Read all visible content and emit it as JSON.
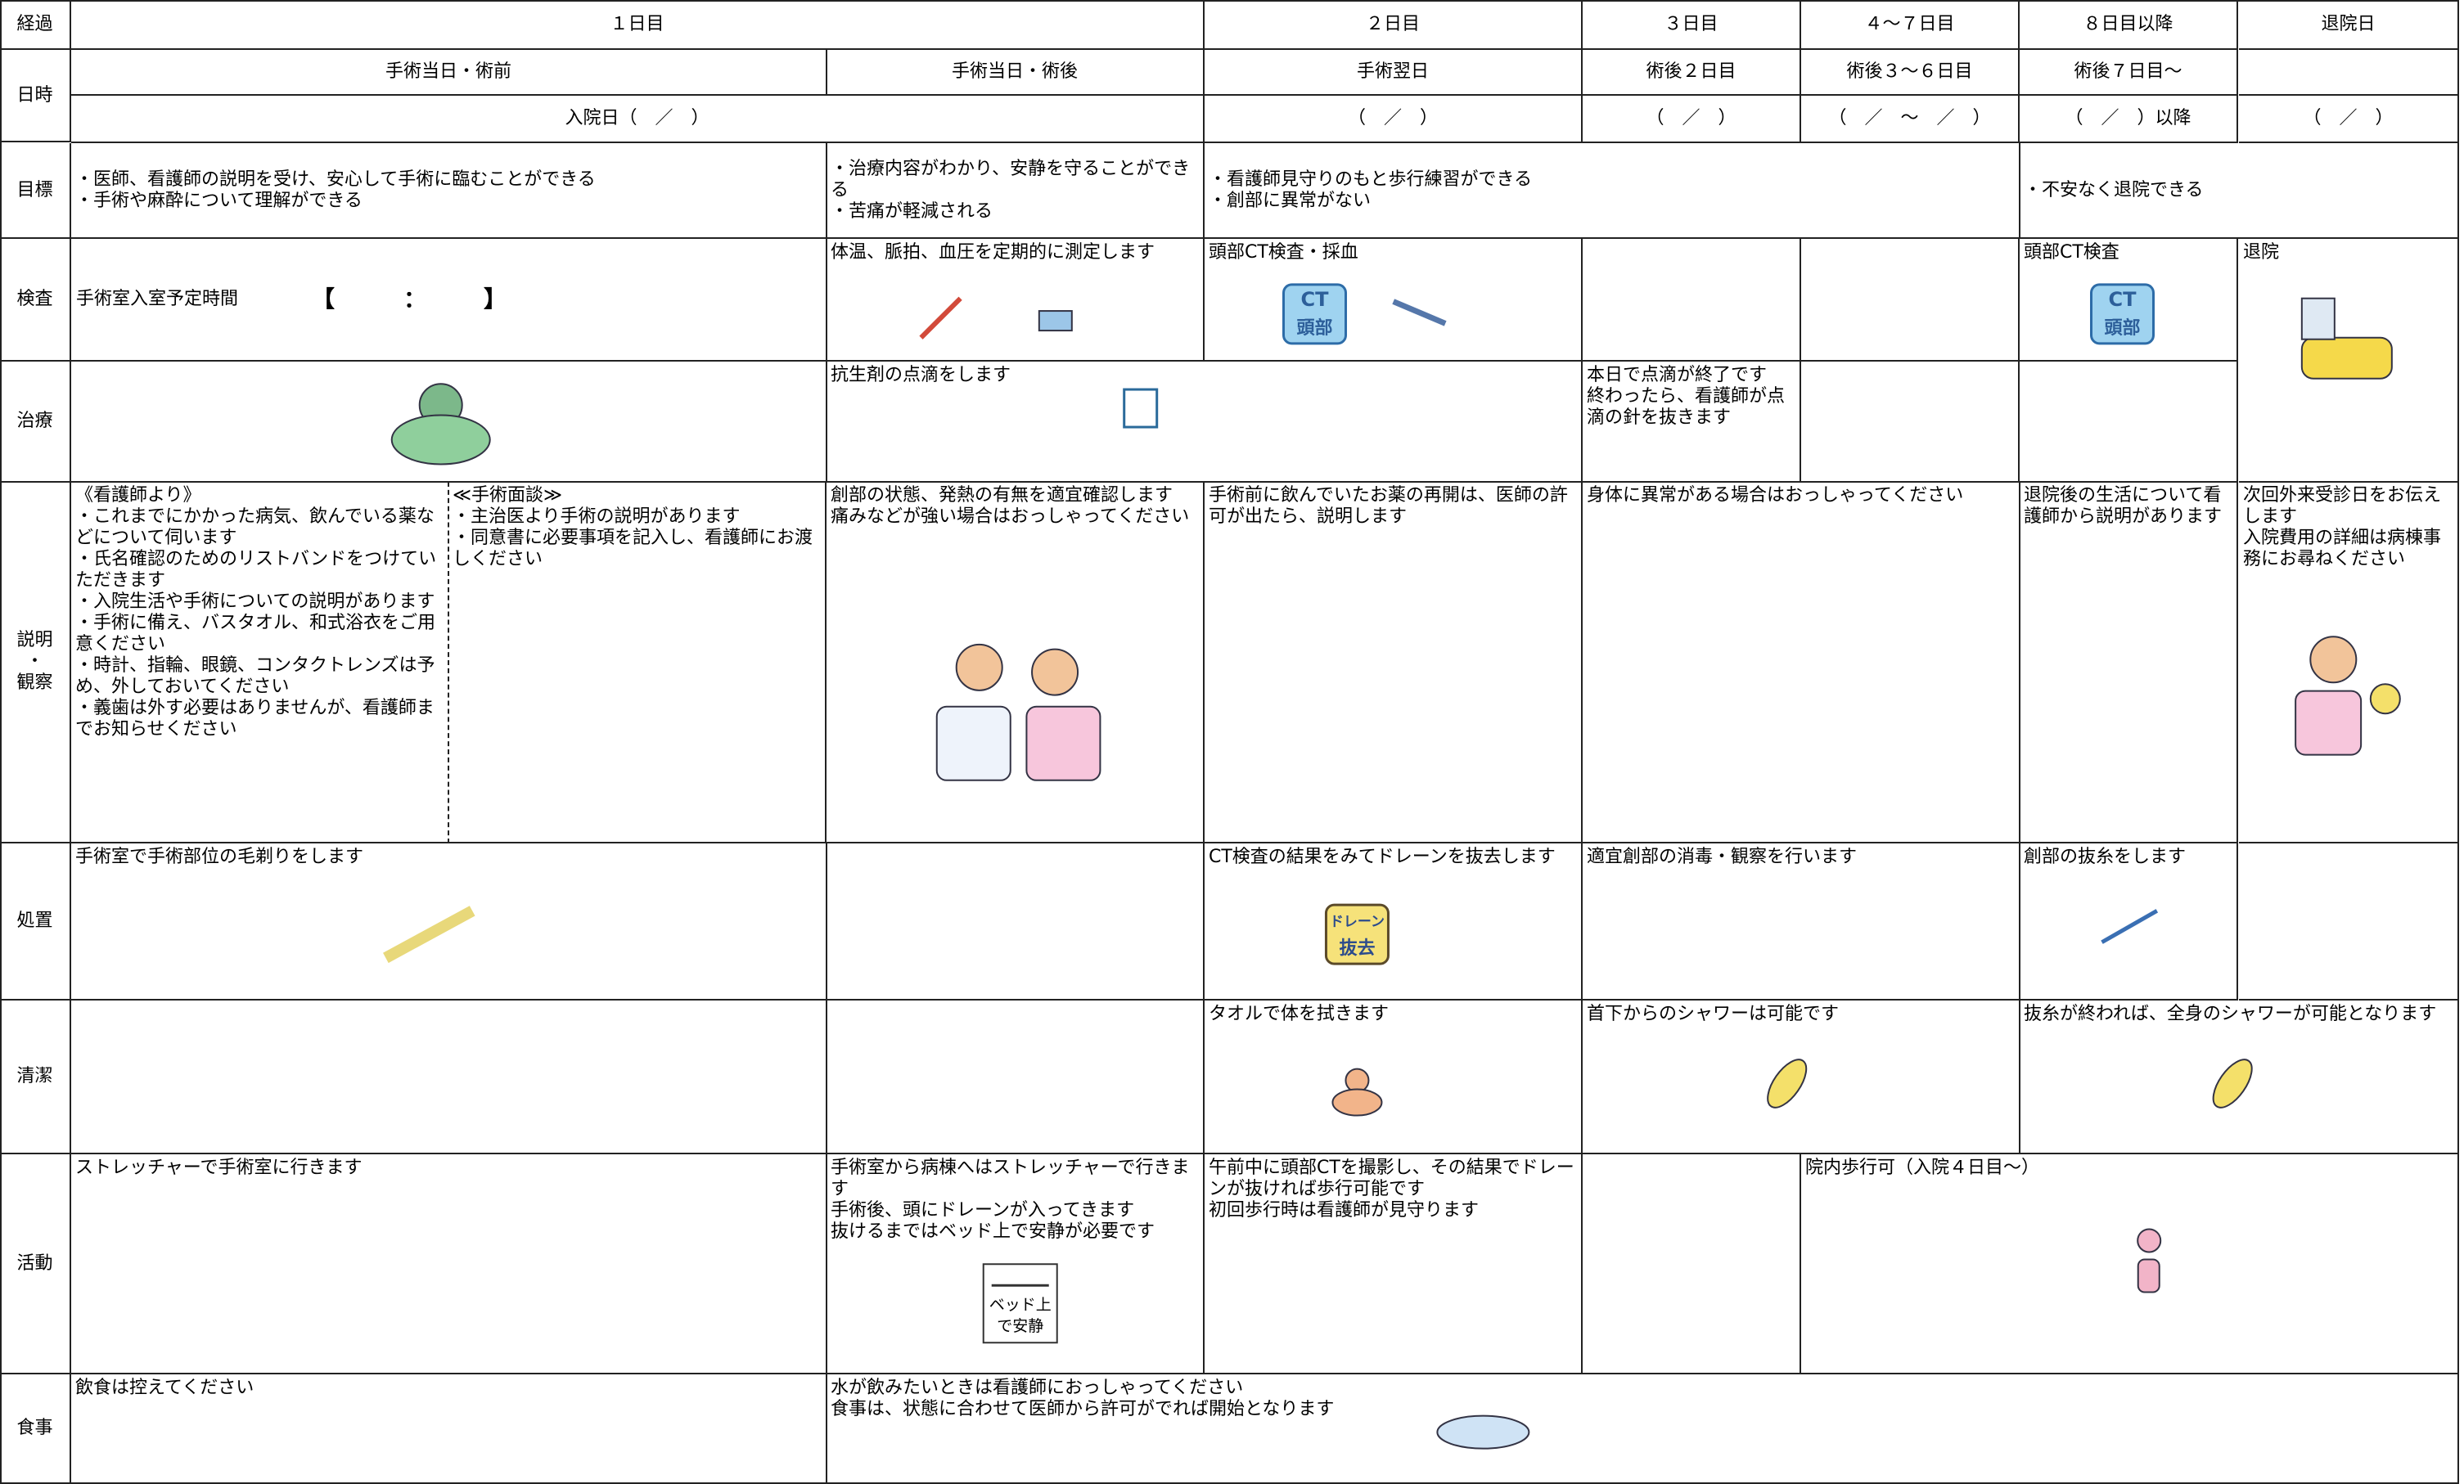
{
  "cells": [
    {
      "lines": [
        "経過"
      ]
    },
    {
      "lines": [
        "１日目"
      ]
    },
    {
      "lines": [
        "２日目"
      ]
    },
    {
      "lines": [
        "３日目"
      ]
    },
    {
      "lines": [
        "４～７日目"
      ]
    },
    {
      "lines": [
        "８日目以降"
      ]
    },
    {
      "lines": [
        "退院日"
      ]
    },
    {
      "lines": [
        "日時"
      ]
    },
    {
      "lines": [
        "手術当日・術前"
      ]
    },
    {
      "lines": [
        "手術当日・術後"
      ]
    },
    {
      "lines": [
        "手術翌日"
      ]
    },
    {
      "lines": [
        "術後２日目"
      ]
    },
    {
      "lines": [
        "術後３～６日目"
      ]
    },
    {
      "lines": [
        "術後７日目～"
      ]
    },
    {
      "lines": [
        "入院日（　／　）"
      ]
    },
    {
      "lines": [
        "（　／　）"
      ]
    },
    {
      "lines": [
        "（　／　）"
      ]
    },
    {
      "lines": [
        "（　／　～　／　）"
      ]
    },
    {
      "lines": [
        "（　／　）以降"
      ]
    },
    {
      "lines": [
        "（　／　）"
      ]
    },
    {
      "lines": [
        "目標"
      ]
    },
    {
      "lines": [
        "・医師、看護師の説明を受け、安心して手術に臨むことができる",
        "・手術や麻酔について理解ができる"
      ]
    },
    {
      "lines": [
        "・治療内容がわかり、安静を守ることができる",
        "・苦痛が軽減される"
      ]
    },
    {
      "lines": [
        "・看護師見守りのもと歩行練習ができる",
        "・創部に異常がない"
      ]
    },
    {
      "lines": [
        "・不安なく退院できる"
      ]
    },
    {
      "lines": [
        "検査"
      ]
    },
    {
      "lines": [
        "手術室入室予定時間",
        "【　　　：　　　】"
      ]
    },
    {
      "lines": [
        "体温、脈拍、血圧を定期的に測定します"
      ]
    },
    {
      "lines": [
        "頭部CT検査・採血"
      ]
    },
    {
      "lines": [
        "頭部CT検査"
      ]
    },
    {
      "lines": [
        "退院"
      ]
    },
    {
      "lines": [
        "治療"
      ]
    },
    {
      "lines": [
        "抗生剤の点滴をします"
      ]
    },
    {
      "lines": [
        "本日で点滴が終了です",
        "終わったら、看護師が点滴の針を抜きます"
      ]
    },
    {
      "lines": [
        "説明",
        "・",
        "観察"
      ]
    },
    {
      "lines": [
        "《看護師より》",
        "・これまでにかかった病気、飲んでいる薬などについて伺います",
        "・氏名確認のためのリストバンドをつけていただきます",
        "・入院生活や手術についての説明があります",
        "・手術に備え、バスタオル、和式浴衣をご用意ください",
        "・時計、指輪、眼鏡、コンタクトレンズは予め、外しておいてください",
        "・義歯は外す必要はありませんが、看護師までお知らせください"
      ]
    },
    {
      "lines": [
        "≪手術面談≫",
        "・主治医より手術の説明があります",
        "・同意書に必要事項を記入し、看護師にお渡しください"
      ]
    },
    {
      "lines": [
        "創部の状態、発熱の有無を適宜確認します",
        "痛みなどが強い場合はおっしゃってください"
      ]
    },
    {
      "lines": [
        "手術前に飲んでいたお薬の再開は、医師の許可が出たら、説明します"
      ]
    },
    {
      "lines": [
        "身体に異常がある場合はおっしゃってください"
      ]
    },
    {
      "lines": [
        "退院後の生活について看護師から説明があります"
      ]
    },
    {
      "lines": [
        "次回外来受診日をお伝えします",
        "入院費用の詳細は病棟事務にお尋ねください"
      ]
    },
    {
      "lines": [
        "処置"
      ]
    },
    {
      "lines": [
        "手術室で手術部位の毛剃りをします"
      ]
    },
    {
      "lines": [
        "CT検査の結果をみてドレーンを抜去します"
      ]
    },
    {
      "lines": [
        "適宜創部の消毒・観察を行います"
      ]
    },
    {
      "lines": [
        "創部の抜糸をします"
      ]
    },
    {
      "lines": [
        "清潔"
      ]
    },
    {
      "lines": [
        "タオルで体を拭きます"
      ]
    },
    {
      "lines": [
        "首下からのシャワーは可能です"
      ]
    },
    {
      "lines": [
        "抜糸が終われば、全身のシャワーが可能となります"
      ]
    },
    {
      "lines": [
        "活動"
      ]
    },
    {
      "lines": [
        "ストレッチャーで手術室に行きます"
      ]
    },
    {
      "lines": [
        "手術室から病棟へはストレッチャーで行きます",
        "手術後、頭にドレーンが入ってきます",
        "抜けるまではベッド上で安静が必要です"
      ]
    },
    {
      "lines": [
        "午前中に頭部CTを撮影し、その結果でドレーンが抜ければ歩行可能です",
        "初回歩行時は看護師が見守ります"
      ]
    },
    {
      "lines": [
        "院内歩行可（入院４日目～）"
      ]
    },
    {
      "lines": [
        "食事"
      ]
    },
    {
      "lines": [
        "飲食は控えてください"
      ]
    },
    {
      "lines": [
        "水が飲みたいときは看護師におっしゃってください",
        "食事は、状態に合わせて医師から許可がでれば開始となります"
      ]
    }
  ],
  "icons": {
    "ct": [
      "CT",
      "頭部"
    ],
    "drain": [
      "ドレーン",
      "抜去"
    ],
    "bed": [
      "ベッド上",
      "で安静"
    ]
  }
}
